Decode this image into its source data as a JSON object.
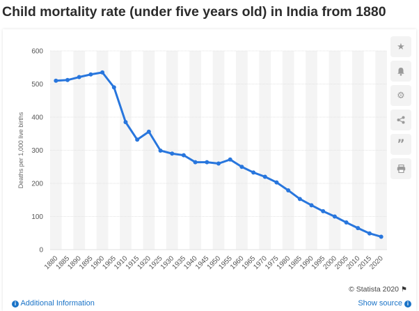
{
  "title": "Child mortality rate (under five years old) in India from 1880",
  "toolbar": {
    "icons": [
      "star-icon",
      "bell-icon",
      "gear-icon",
      "share-icon",
      "quote-icon",
      "print-icon"
    ]
  },
  "footer": {
    "credit": "© Statista 2020",
    "additional_info": "Additional Information",
    "show_source": "Show source"
  },
  "chart_data": {
    "type": "line",
    "title": "Child mortality rate (under five years old) in India from 1880",
    "xlabel": "",
    "ylabel": "Deaths per 1,000 live births",
    "ylim": [
      0,
      600
    ],
    "yticks": [
      0,
      100,
      200,
      300,
      400,
      500,
      600
    ],
    "grid": "horizontal",
    "line_color": "#2876dd",
    "band_color": "#f4f4f4",
    "categories": [
      "1880",
      "1885",
      "1890",
      "1895",
      "1900",
      "1905",
      "1910",
      "1915",
      "1920",
      "1925",
      "1930",
      "1935",
      "1940",
      "1945",
      "1950",
      "1955",
      "1960",
      "1965",
      "1970",
      "1975",
      "1980",
      "1985",
      "1990",
      "1995",
      "2000",
      "2005",
      "2010",
      "2015",
      "2020"
    ],
    "series": [
      {
        "values": [
          510,
          512,
          521,
          529,
          535,
          490,
          385,
          332,
          356,
          299,
          290,
          285,
          264,
          264,
          260,
          272,
          250,
          233,
          220,
          203,
          179,
          153,
          134,
          116,
          100,
          82,
          65,
          49,
          39
        ]
      }
    ]
  }
}
